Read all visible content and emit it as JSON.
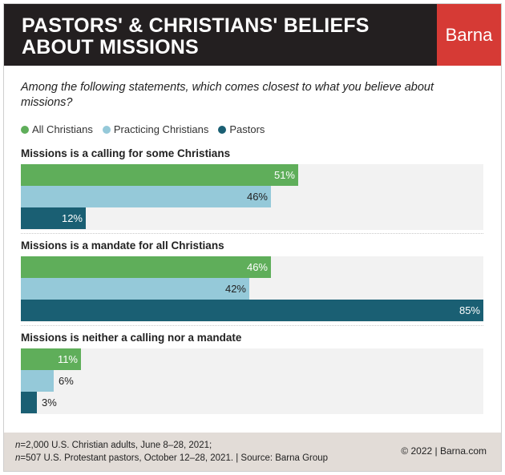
{
  "header": {
    "title_line1": "PASTORS' & CHRISTIANS' BELIEFS",
    "title_line2": "ABOUT MISSIONS",
    "brand": "Barna"
  },
  "question": "Among the following statements, which comes closest to what you believe about missions?",
  "colors": {
    "all_christians": "#5fae5a",
    "practicing_christians": "#95c9d9",
    "pastors": "#1a5f73"
  },
  "chart_data": {
    "type": "bar",
    "orientation": "horizontal",
    "title": "PASTORS' & CHRISTIANS' BELIEFS ABOUT MISSIONS",
    "categories": [
      "Missions is a calling for some Christians",
      "Missions is a mandate for all Christians",
      "Missions is neither a calling nor a mandate"
    ],
    "series": [
      {
        "name": "All Christians",
        "values": [
          51,
          46,
          11
        ]
      },
      {
        "name": "Practicing Christians",
        "values": [
          46,
          42,
          6
        ]
      },
      {
        "name": "Pastors",
        "values": [
          12,
          85,
          3
        ]
      }
    ],
    "value_suffix": "%",
    "xlim": [
      0,
      85
    ],
    "legend": "top-left",
    "grid": false
  },
  "footer": {
    "n_symbol": "n",
    "note_line1": "=2,000 U.S. Christian adults, June 8–28, 2021;",
    "note_line2": "=507 U.S. Protestant pastors, October 12–28, 2021. | Source: Barna Group",
    "copyright": "© 2022 |  Barna.com"
  }
}
